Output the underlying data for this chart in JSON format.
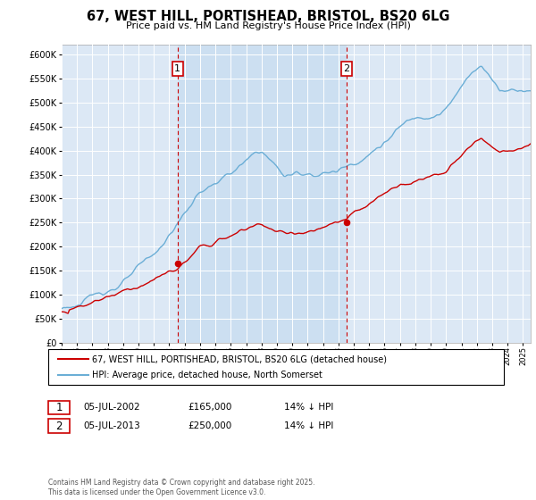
{
  "title": "67, WEST HILL, PORTISHEAD, BRISTOL, BS20 6LG",
  "subtitle": "Price paid vs. HM Land Registry's House Price Index (HPI)",
  "legend_line1": "67, WEST HILL, PORTISHEAD, BRISTOL, BS20 6LG (detached house)",
  "legend_line2": "HPI: Average price, detached house, North Somerset",
  "annotation1": {
    "label": "1",
    "date": "05-JUL-2002",
    "price": "£165,000",
    "note": "14% ↓ HPI"
  },
  "annotation2": {
    "label": "2",
    "date": "05-JUL-2013",
    "price": "£250,000",
    "note": "14% ↓ HPI"
  },
  "footer": "Contains HM Land Registry data © Crown copyright and database right 2025.\nThis data is licensed under the Open Government Licence v3.0.",
  "hpi_color": "#6baed6",
  "price_color": "#cc0000",
  "annotation_color": "#cc0000",
  "background_color": "#dce8f5",
  "shade_color": "#c8ddf0",
  "ylim": [
    0,
    620000
  ],
  "ytick_step": 50000,
  "sale1_x": 2002.54,
  "sale2_x": 2013.54,
  "sale1_y": 165000,
  "sale2_y": 250000,
  "xlim_left": 1995.0,
  "xlim_right": 2025.5
}
